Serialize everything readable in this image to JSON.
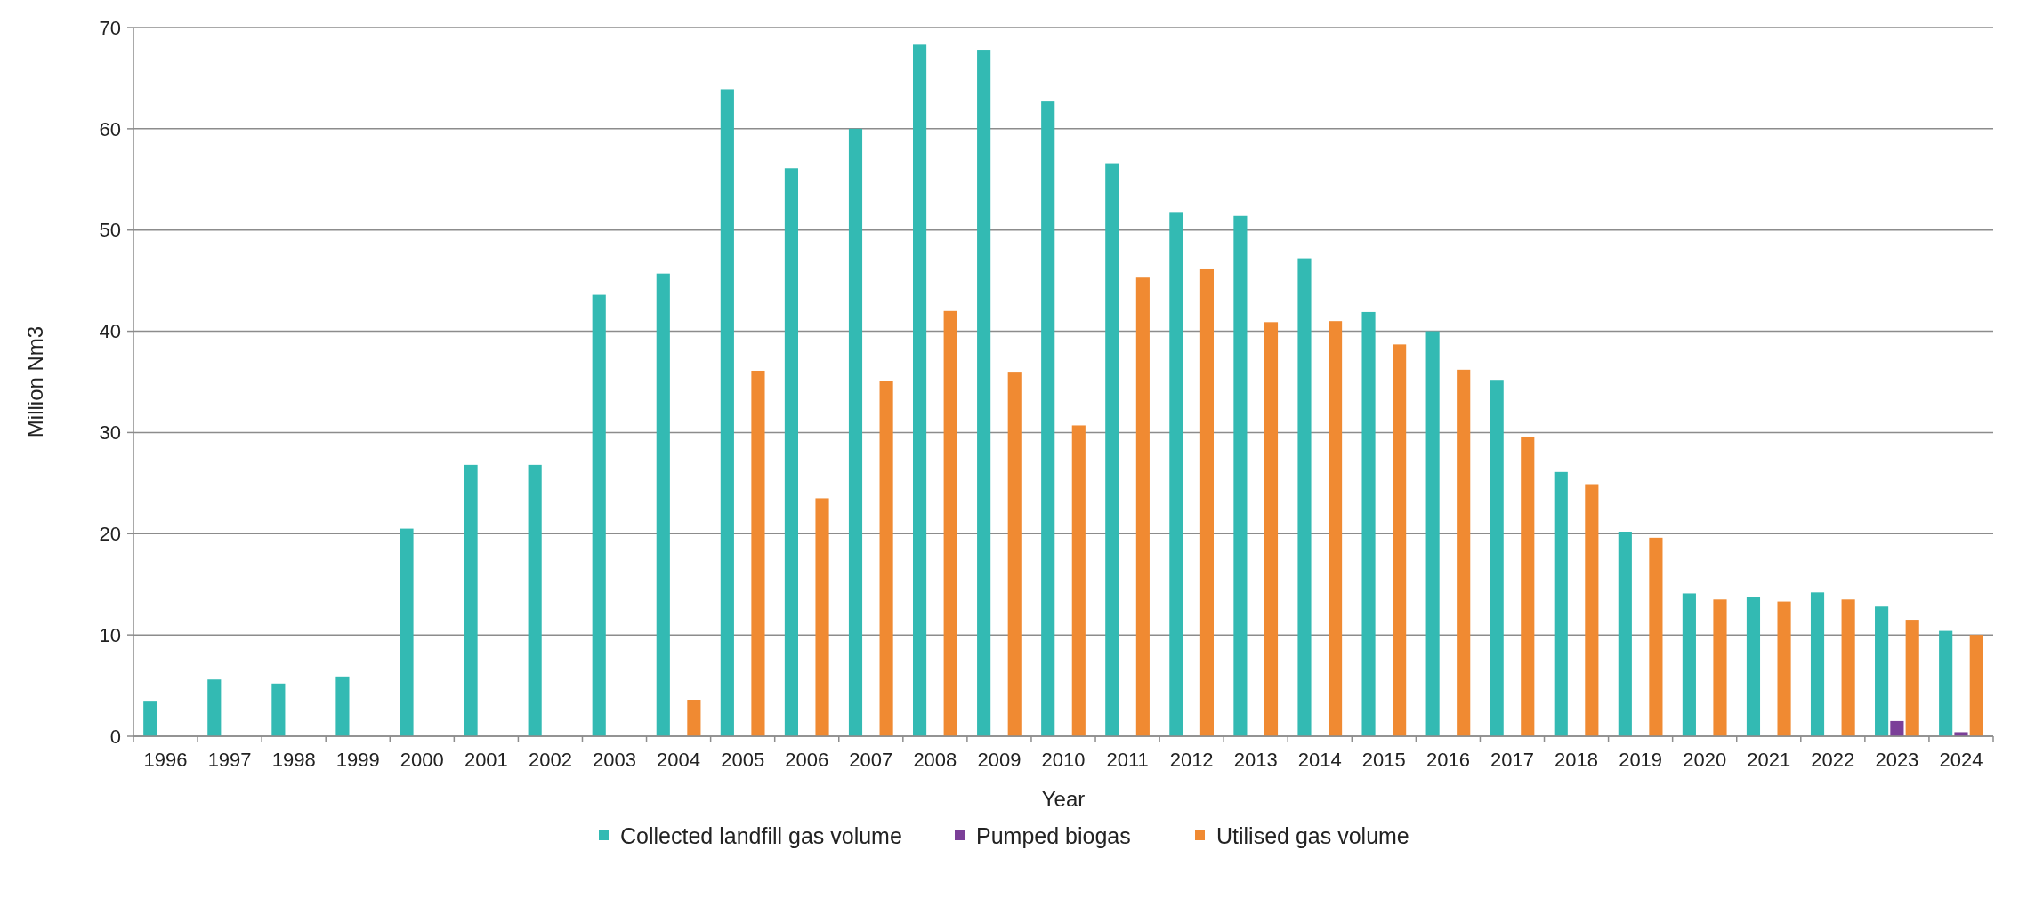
{
  "chart_data": {
    "type": "bar",
    "xlabel": "Year",
    "ylabel": "Million Nm3",
    "categories": [
      "1996",
      "1997",
      "1998",
      "1999",
      "2000",
      "2001",
      "2002",
      "2003",
      "2004",
      "2005",
      "2006",
      "2007",
      "2008",
      "2009",
      "2010",
      "2011",
      "2012",
      "2013",
      "2014",
      "2015",
      "2016",
      "2017",
      "2018",
      "2019",
      "2020",
      "2021",
      "2022",
      "2023",
      "2024"
    ],
    "series": [
      {
        "name": "Collected landfill gas volume",
        "color": "#33bab3",
        "values": [
          3.5,
          5.6,
          5.2,
          5.9,
          20.5,
          26.8,
          26.8,
          43.6,
          45.7,
          63.9,
          56.1,
          60.0,
          68.3,
          67.8,
          62.7,
          56.6,
          51.7,
          51.4,
          47.2,
          41.9,
          40.0,
          35.2,
          26.1,
          20.2,
          14.1,
          13.7,
          14.2,
          12.8,
          10.4
        ]
      },
      {
        "name": "Pumped biogas",
        "color": "#7b3f98",
        "values": [
          null,
          null,
          null,
          null,
          null,
          null,
          null,
          null,
          null,
          null,
          null,
          null,
          null,
          null,
          null,
          null,
          null,
          null,
          null,
          null,
          null,
          null,
          null,
          null,
          null,
          null,
          null,
          1.5,
          0.4
        ]
      },
      {
        "name": "Utilised gas volume",
        "color": "#f08a32",
        "values": [
          null,
          null,
          null,
          null,
          null,
          null,
          null,
          null,
          3.6,
          36.1,
          23.5,
          35.1,
          42.0,
          36.0,
          30.7,
          45.3,
          46.2,
          40.9,
          41.0,
          38.7,
          36.2,
          29.6,
          24.9,
          19.6,
          13.5,
          13.3,
          13.5,
          11.5,
          10.0
        ]
      }
    ],
    "ylim": [
      0,
      70
    ],
    "yticks": [
      0,
      10,
      20,
      30,
      40,
      50,
      60,
      70
    ],
    "grid": "y",
    "legend": "bottom"
  }
}
